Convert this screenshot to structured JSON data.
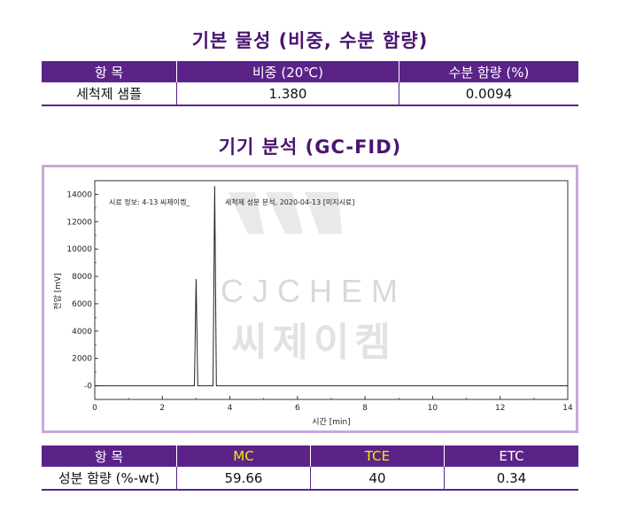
{
  "section1": {
    "title": "기본 물성 (비중, 수분 함량)",
    "headers": [
      "항 목",
      "비중 (20℃)",
      "수분 함량 (%)"
    ],
    "row": [
      "세척제 샘플",
      "1.380",
      "0.0094"
    ]
  },
  "section2": {
    "title": "기기 분석 (GC-FID)"
  },
  "chart_data": {
    "type": "line",
    "annotation_left": "시료 정보:  4-13 씨제이켐_",
    "annotation_right": "세척제 성분 분석, 2020-04-13 [미지시료]",
    "xlabel": "시간 [min]",
    "ylabel": "전압 [mV]",
    "xlim": [
      0,
      14
    ],
    "ylim": [
      -1000,
      15000
    ],
    "xticks": [
      0,
      2,
      4,
      6,
      8,
      10,
      12,
      14
    ],
    "yticks": [
      0,
      2000,
      4000,
      6000,
      8000,
      10000,
      12000,
      14000
    ],
    "ytick_labels": [
      "-0",
      "2000",
      "4000",
      "6000",
      "8000",
      "10000",
      "12000",
      "14000"
    ],
    "grid": false,
    "series": [
      {
        "x": [
          0,
          2.95,
          3.0,
          3.05,
          3.5,
          3.55,
          3.6,
          14
        ],
        "y": [
          0,
          0,
          7800,
          0,
          0,
          14600,
          0,
          0
        ]
      }
    ],
    "watermark": {
      "latin": "CJCHEM",
      "korean": "씨제이켐"
    },
    "colors": {
      "line": "#222222",
      "frame": "#c9a6dd"
    }
  },
  "section3": {
    "headers": [
      "항 목",
      "MC",
      "TCE",
      "ETC"
    ],
    "row": [
      "성분 함량 (%-wt)",
      "59.66",
      "40",
      "0.34"
    ]
  },
  "colors": {
    "header_bg": "#5b2388",
    "title": "#4a1470",
    "highlight": "#ffe600"
  }
}
